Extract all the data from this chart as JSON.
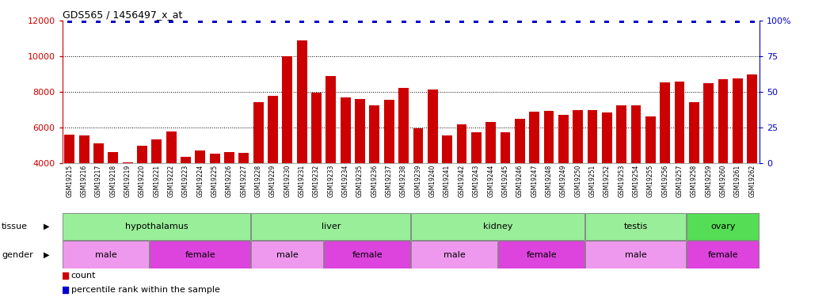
{
  "title": "GDS565 / 1456497_x_at",
  "samples": [
    "GSM19215",
    "GSM19216",
    "GSM19217",
    "GSM19218",
    "GSM19219",
    "GSM19220",
    "GSM19221",
    "GSM19222",
    "GSM19223",
    "GSM19224",
    "GSM19225",
    "GSM19226",
    "GSM19227",
    "GSM19228",
    "GSM19229",
    "GSM19230",
    "GSM19231",
    "GSM19232",
    "GSM19233",
    "GSM19234",
    "GSM19235",
    "GSM19236",
    "GSM19237",
    "GSM19238",
    "GSM19239",
    "GSM19240",
    "GSM19241",
    "GSM19242",
    "GSM19243",
    "GSM19244",
    "GSM19245",
    "GSM19246",
    "GSM19247",
    "GSM19248",
    "GSM19249",
    "GSM19250",
    "GSM19251",
    "GSM19252",
    "GSM19253",
    "GSM19254",
    "GSM19255",
    "GSM19256",
    "GSM19257",
    "GSM19258",
    "GSM19259",
    "GSM19260",
    "GSM19261",
    "GSM19262"
  ],
  "counts": [
    5600,
    5550,
    5100,
    4650,
    4050,
    5000,
    5350,
    5800,
    4350,
    4700,
    4550,
    4650,
    4600,
    7450,
    7800,
    10000,
    10900,
    7950,
    8900,
    7700,
    7600,
    7250,
    7550,
    8250,
    5950,
    8150,
    5550,
    6200,
    5750,
    6300,
    5750,
    6500,
    6900,
    6950,
    6700,
    7000,
    7000,
    6850,
    7250,
    7250,
    6650,
    8550,
    8600,
    7450,
    8500,
    8700,
    8750,
    9000
  ],
  "bar_color": "#cc0000",
  "percentile_color": "#0000cc",
  "ylim_left": [
    4000,
    12000
  ],
  "ylim_right": [
    0,
    100
  ],
  "yticks_left": [
    4000,
    6000,
    8000,
    10000,
    12000
  ],
  "yticks_right": [
    0,
    25,
    50,
    75,
    100
  ],
  "ytick_labels_right": [
    "0",
    "25",
    "50",
    "75",
    "100%"
  ],
  "grid_values": [
    6000,
    8000,
    10000
  ],
  "tissue_groups": [
    {
      "label": "hypothalamus",
      "start": 0,
      "end": 12,
      "color": "#99ee99"
    },
    {
      "label": "liver",
      "start": 13,
      "end": 23,
      "color": "#99ee99"
    },
    {
      "label": "kidney",
      "start": 24,
      "end": 35,
      "color": "#99ee99"
    },
    {
      "label": "testis",
      "start": 36,
      "end": 42,
      "color": "#99ee99"
    },
    {
      "label": "ovary",
      "start": 43,
      "end": 47,
      "color": "#55dd55"
    }
  ],
  "gender_groups": [
    {
      "label": "male",
      "start": 0,
      "end": 5,
      "color": "#ee99ee"
    },
    {
      "label": "female",
      "start": 6,
      "end": 12,
      "color": "#dd44dd"
    },
    {
      "label": "male",
      "start": 13,
      "end": 17,
      "color": "#ee99ee"
    },
    {
      "label": "female",
      "start": 18,
      "end": 23,
      "color": "#dd44dd"
    },
    {
      "label": "male",
      "start": 24,
      "end": 29,
      "color": "#ee99ee"
    },
    {
      "label": "female",
      "start": 30,
      "end": 35,
      "color": "#dd44dd"
    },
    {
      "label": "male",
      "start": 36,
      "end": 42,
      "color": "#ee99ee"
    },
    {
      "label": "female",
      "start": 43,
      "end": 47,
      "color": "#dd44dd"
    }
  ],
  "bg_color": "#ffffff",
  "xtick_bg_color": "#cccccc",
  "tick_color_left": "#cc0000",
  "tick_color_right": "#0000cc",
  "legend_count_label": "count",
  "legend_percentile_label": "percentile rank within the sample",
  "tissue_label": "tissue",
  "gender_label": "gender"
}
